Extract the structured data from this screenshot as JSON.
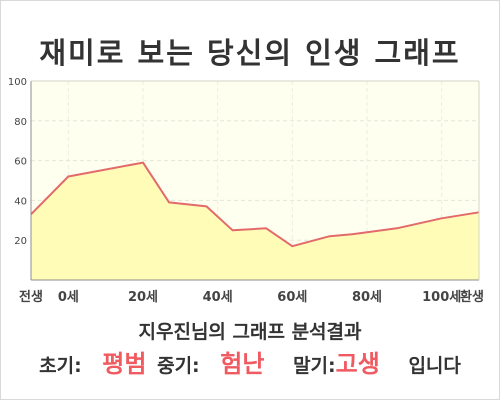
{
  "title": "재미로 보는 당신의 인생 그래프",
  "caption": "지우진님의 그래프 분석결과",
  "result": {
    "early_label": "초기:",
    "early_value": "평범",
    "middle_label": "중기:",
    "middle_value": "험난",
    "late_label": "말기:",
    "late_value": "고생",
    "ending": "입니다"
  },
  "colors": {
    "line": "#e36a6a",
    "fill": "#fffcb8",
    "plot_background": "#fffff0",
    "highlight": "#ef5b61"
  },
  "chart_data": {
    "type": "area",
    "title": "",
    "xlabel": "",
    "ylabel": "",
    "ylim": [
      0,
      100
    ],
    "yticks": [
      20,
      40,
      60,
      80,
      100
    ],
    "xlim": [
      -10,
      110
    ],
    "x_tick_values": [
      -10,
      0,
      20,
      40,
      60,
      80,
      100,
      110
    ],
    "x_tick_labels": [
      "전생",
      "0세",
      "20세",
      "40세",
      "60세",
      "80세",
      "100세",
      "환생"
    ],
    "grid": true,
    "legend": "none",
    "series": [
      {
        "x": [
          -10,
          0,
          20,
          27,
          37,
          44,
          53,
          60,
          70,
          76,
          88,
          100,
          110
        ],
        "values": [
          33,
          52,
          59,
          39,
          37,
          25,
          26,
          17,
          22,
          23,
          26,
          31,
          34
        ]
      }
    ]
  }
}
